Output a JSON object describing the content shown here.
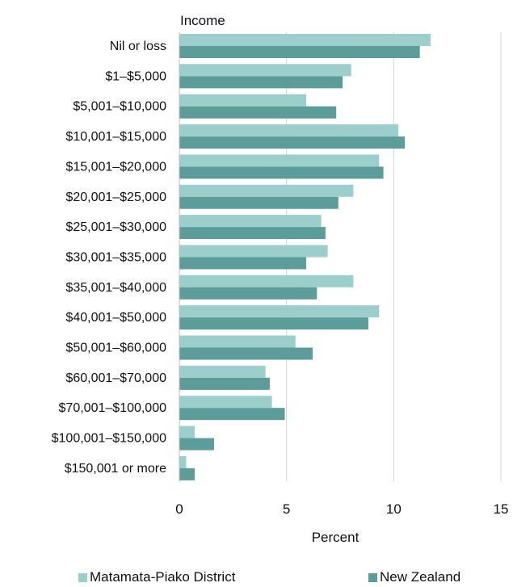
{
  "chart_data": {
    "type": "bar",
    "orientation": "horizontal",
    "y_axis_title": "Income",
    "xlabel": "Percent",
    "xlim": [
      0,
      15
    ],
    "xticks": [
      "0",
      "5",
      "10",
      "15"
    ],
    "grid": true,
    "legend_position": "bottom",
    "categories": [
      "Nil or loss",
      "$1–$5,000",
      "$5,001–$10,000",
      "$10,001–$15,000",
      "$15,001–$20,000",
      "$20,001–$25,000",
      "$25,001–$30,000",
      "$30,001–$35,000",
      "$35,001–$40,000",
      "$40,001–$50,000",
      "$50,001–$60,000",
      "$60,001–$70,000",
      "$70,001–$100,000",
      "$100,001–$150,000",
      "$150,001 or more"
    ],
    "series": [
      {
        "name": "Matamata-Piako District",
        "color": "#9ccfcb",
        "values": [
          11.7,
          8.0,
          5.9,
          10.2,
          9.3,
          8.1,
          6.6,
          6.9,
          8.1,
          9.3,
          5.4,
          4.0,
          4.3,
          0.7,
          0.3
        ]
      },
      {
        "name": "New Zealand",
        "color": "#5c9d9a",
        "values": [
          11.2,
          7.6,
          7.3,
          10.5,
          9.5,
          7.4,
          6.8,
          5.9,
          6.4,
          8.8,
          6.2,
          4.2,
          4.9,
          1.6,
          0.7
        ]
      }
    ]
  }
}
